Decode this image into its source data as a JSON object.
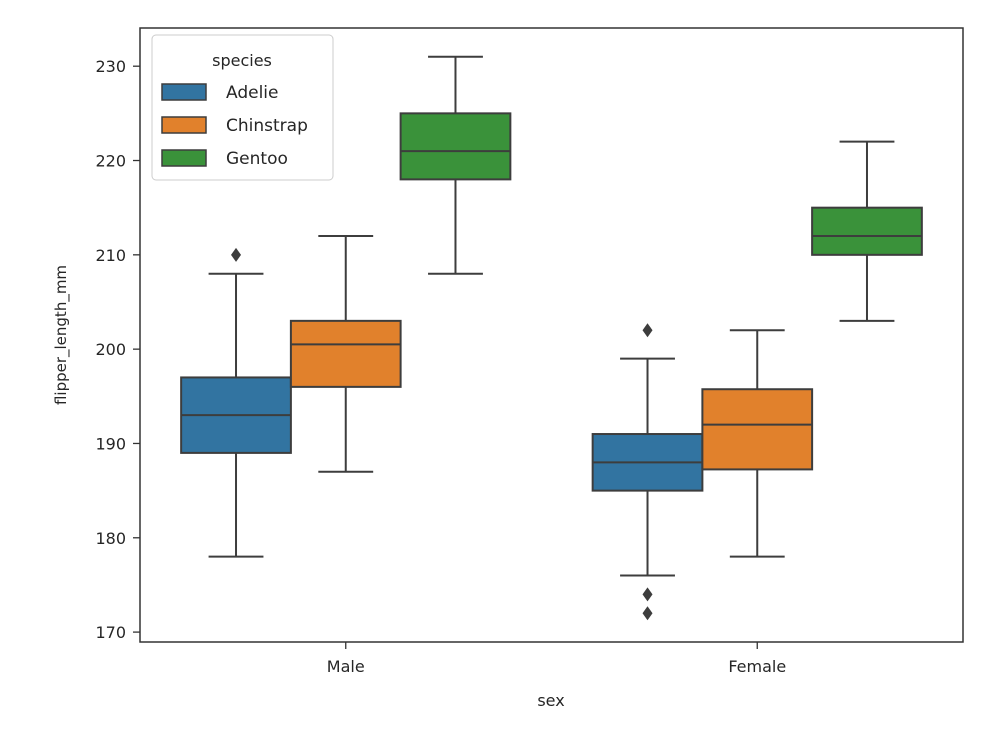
{
  "chart_data": {
    "type": "box",
    "title": "",
    "xlabel": "sex",
    "ylabel": "flipper_length_mm",
    "categories": [
      "Male",
      "Female"
    ],
    "ylim": [
      168.95,
      234.05
    ],
    "yticks": [
      170,
      180,
      190,
      200,
      210,
      220,
      230
    ],
    "grid": false,
    "legend": {
      "title": "species",
      "placement": "top-left"
    },
    "series": [
      {
        "name": "Adelie",
        "color": "#3274a1",
        "boxes": [
          {
            "whislo": 178,
            "q1": 189,
            "med": 193,
            "q3": 197,
            "whishi": 208,
            "fliers": [
              210
            ]
          },
          {
            "whislo": 176,
            "q1": 185,
            "med": 188,
            "q3": 191,
            "whishi": 199,
            "fliers": [
              202,
              174,
              172
            ]
          }
        ]
      },
      {
        "name": "Chinstrap",
        "color": "#e1812c",
        "boxes": [
          {
            "whislo": 187,
            "q1": 196,
            "med": 200.5,
            "q3": 203,
            "whishi": 212,
            "fliers": []
          },
          {
            "whislo": 178,
            "q1": 187.25,
            "med": 192,
            "q3": 195.75,
            "whishi": 202,
            "fliers": []
          }
        ]
      },
      {
        "name": "Gentoo",
        "color": "#3a923a",
        "boxes": [
          {
            "whislo": 208,
            "q1": 218,
            "med": 221,
            "q3": 225,
            "whishi": 231,
            "fliers": []
          },
          {
            "whislo": 203,
            "q1": 210,
            "med": 212,
            "q3": 215,
            "whishi": 222,
            "fliers": []
          }
        ]
      }
    ]
  }
}
